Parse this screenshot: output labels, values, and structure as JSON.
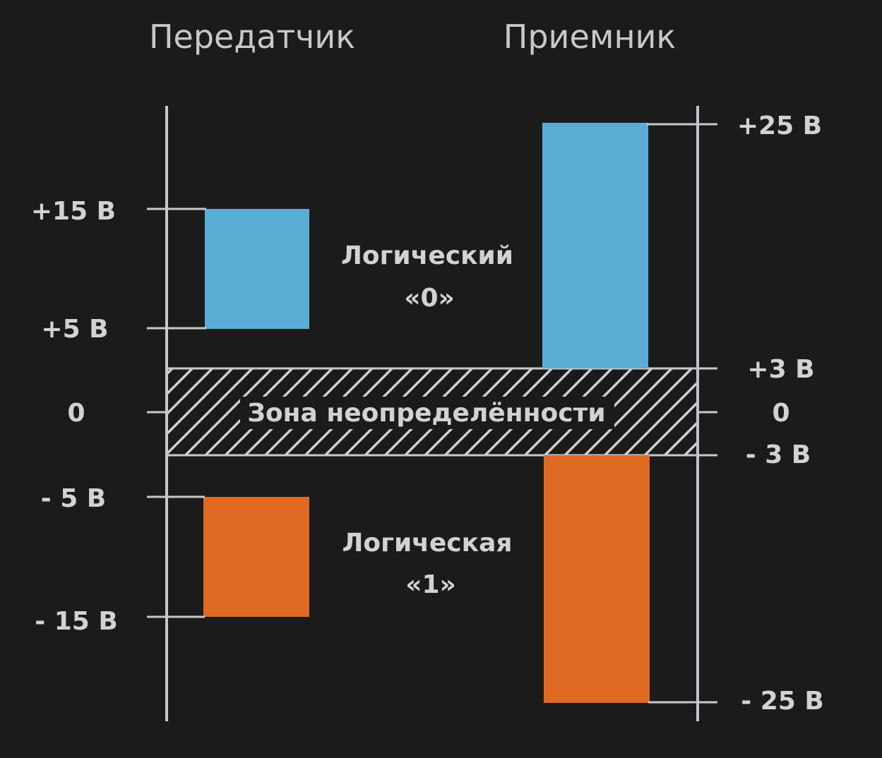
{
  "titles": {
    "transmitter": "Передатчик",
    "receiver": "Приемник"
  },
  "transmitter_levels": {
    "plus15": "+15 В",
    "plus5": "+5 В",
    "zero": "0",
    "minus5": "- 5 В",
    "minus15": "- 15 В"
  },
  "receiver_levels": {
    "plus25": "+25 В",
    "plus3": "+3 В",
    "zero": "0",
    "minus3": "- 3 В",
    "minus25": "- 25 В"
  },
  "labels": {
    "logic0_line1": "Логический",
    "logic0_line2": "«0»",
    "logic1_line1": "Логическая",
    "logic1_line2": "«1»",
    "undefined_zone": "Зона неопределённости"
  },
  "colors": {
    "logic0": "#5aaed6",
    "logic1": "#e06a24",
    "background": "#1c1b1c"
  }
}
